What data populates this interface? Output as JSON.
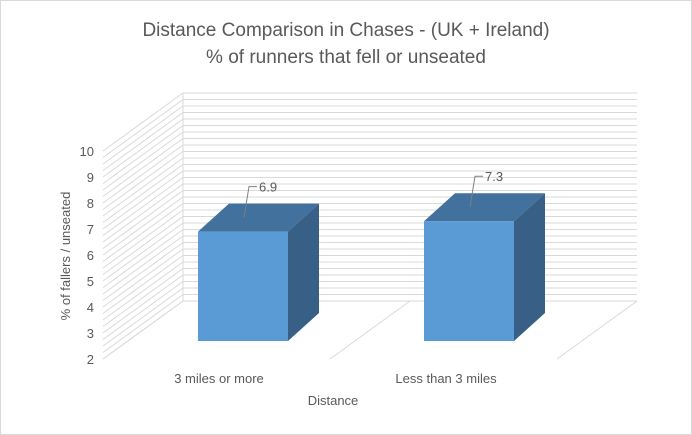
{
  "chart_data": {
    "type": "bar",
    "title_line1": "Distance Comparison in Chases - (UK + Ireland)",
    "title_line2": "% of runners that fell or unseated",
    "xlabel": "Distance",
    "ylabel": "% of fallers / unseated",
    "categories": [
      "3 miles or more",
      "Less than 3 miles"
    ],
    "values": [
      6.9,
      7.3
    ],
    "data_labels": [
      "6.9",
      "7.3"
    ],
    "ylim": [
      2,
      10
    ],
    "yticks": [
      "2",
      "3",
      "4",
      "5",
      "6",
      "7",
      "8",
      "9",
      "10"
    ],
    "grid": true,
    "three_d": true,
    "legend": "none",
    "colors": {
      "bar_front": "#5b9bd5",
      "bar_top": "#41719c",
      "bar_side": "#386087",
      "gridline": "#d9d9d9",
      "text": "#595959",
      "border": "#d9d9d9"
    }
  }
}
